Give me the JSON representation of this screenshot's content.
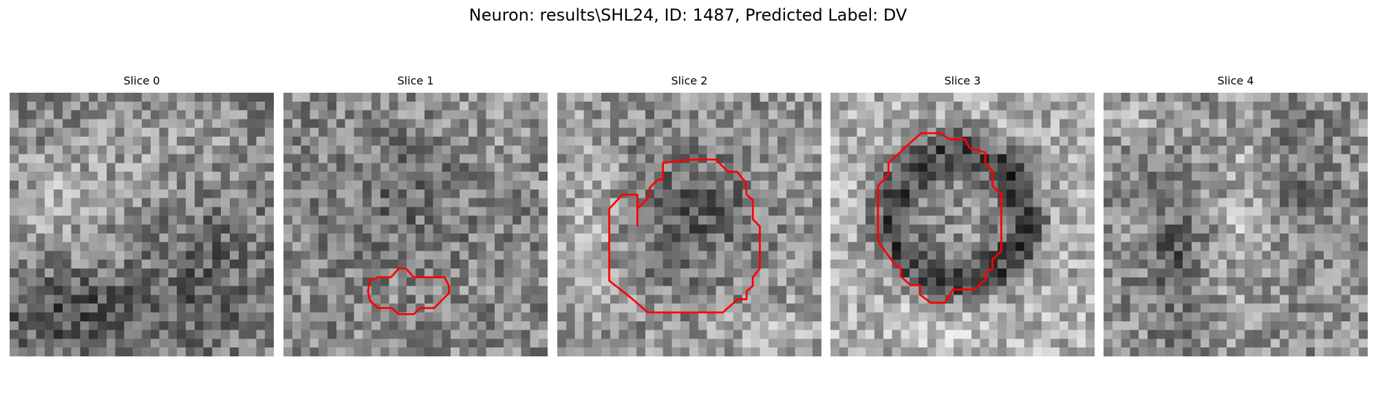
{
  "title": "Neuron: results\\SHL24, ID: 1487, Predicted Label: DV",
  "contour_color": "#ff0000",
  "panels": [
    {
      "label": "Slice 0",
      "has_contour": false
    },
    {
      "label": "Slice 1",
      "has_contour": true
    },
    {
      "label": "Slice 2",
      "has_contour": true
    },
    {
      "label": "Slice 3",
      "has_contour": true
    },
    {
      "label": "Slice 4",
      "has_contour": false
    }
  ]
}
